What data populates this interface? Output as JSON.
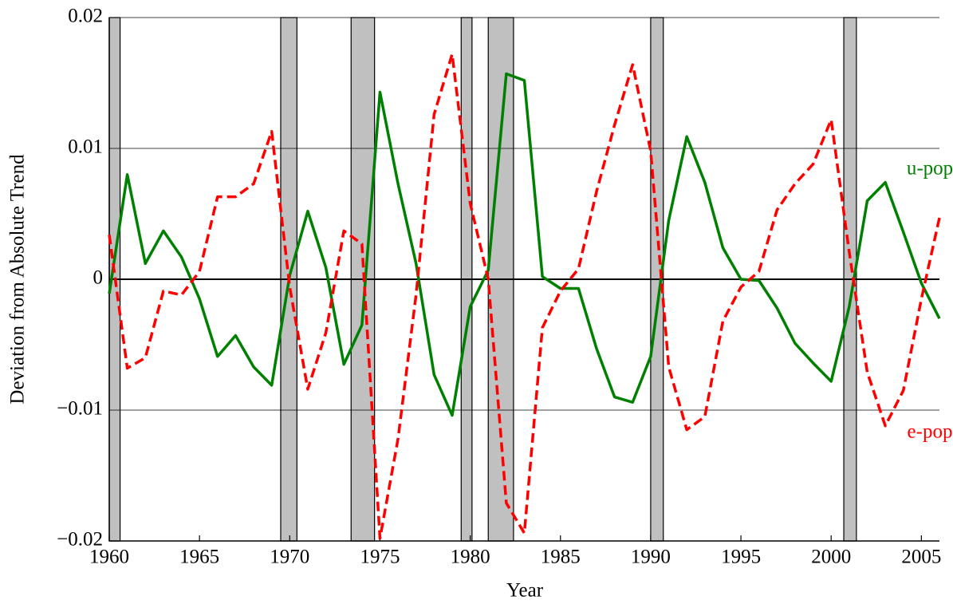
{
  "chart_data": {
    "type": "line",
    "xlabel": "Year",
    "ylabel": "Deviation from Absolute Trend",
    "x": [
      1960,
      1961,
      1962,
      1963,
      1964,
      1965,
      1966,
      1967,
      1968,
      1969,
      1970,
      1971,
      1972,
      1973,
      1974,
      1975,
      1976,
      1977,
      1978,
      1979,
      1980,
      1981,
      1982,
      1983,
      1984,
      1985,
      1986,
      1987,
      1988,
      1989,
      1990,
      1991,
      1992,
      1993,
      1994,
      1995,
      1996,
      1997,
      1998,
      1999,
      2000,
      2001,
      2002,
      2003,
      2004,
      2005,
      2006
    ],
    "series": [
      {
        "name": "u-pop",
        "color": "#008000",
        "dash": false,
        "values": [
          -0.0011,
          0.008,
          0.0012,
          0.0037,
          0.0017,
          -0.0015,
          -0.0059,
          -0.0043,
          -0.0067,
          -0.0081,
          0.0003,
          0.0052,
          0.0009,
          -0.0065,
          -0.0035,
          0.0143,
          0.0073,
          0.0012,
          -0.0073,
          -0.0104,
          -0.0021,
          0.0007,
          0.0157,
          0.0152,
          0.0002,
          -0.0007,
          -0.0007,
          -0.0053,
          -0.009,
          -0.0094,
          -0.0059,
          0.0045,
          0.0109,
          0.0074,
          0.0024,
          0.0,
          -0.0001,
          -0.0022,
          -0.0049,
          -0.0064,
          -0.0078,
          -0.0021,
          0.006,
          0.0074,
          0.0036,
          -0.0003,
          -0.003
        ]
      },
      {
        "name": "e-pop",
        "color": "#ff0000",
        "dash": true,
        "values": [
          0.0034,
          -0.0068,
          -0.006,
          -0.0009,
          -0.0012,
          0.0006,
          0.0063,
          0.0063,
          0.0073,
          0.0113,
          -0.0006,
          -0.0084,
          -0.0041,
          0.0037,
          0.0027,
          -0.0198,
          -0.0122,
          -0.0012,
          0.0126,
          0.0172,
          0.0058,
          0.0,
          -0.0171,
          -0.0194,
          -0.0037,
          -0.0009,
          0.0008,
          0.0067,
          0.0118,
          0.0164,
          0.0098,
          -0.0067,
          -0.0115,
          -0.0105,
          -0.0032,
          -0.0006,
          0.0006,
          0.0053,
          0.0073,
          0.0088,
          0.0122,
          0.0021,
          -0.0071,
          -0.0112,
          -0.0085,
          -0.0015,
          0.0047
        ]
      }
    ],
    "recessions": [
      [
        1960.0,
        1960.6
      ],
      [
        1969.5,
        1970.4
      ],
      [
        1973.4,
        1974.7
      ],
      [
        1979.5,
        1980.1
      ],
      [
        1981.0,
        1982.4
      ],
      [
        1990.0,
        1990.7
      ],
      [
        2000.7,
        2001.4
      ]
    ],
    "recession_color": "#c0c0c0",
    "xlim": [
      1960,
      2006
    ],
    "xticks": [
      1960,
      1965,
      1970,
      1975,
      1980,
      1985,
      1990,
      1995,
      2000,
      2005
    ],
    "ylim": [
      -0.02,
      0.02
    ],
    "yticks": [
      {
        "value": -0.02,
        "label": "−0.02"
      },
      {
        "value": -0.01,
        "label": "−0.01"
      },
      0,
      0.01,
      0.02
    ],
    "grid": true
  }
}
